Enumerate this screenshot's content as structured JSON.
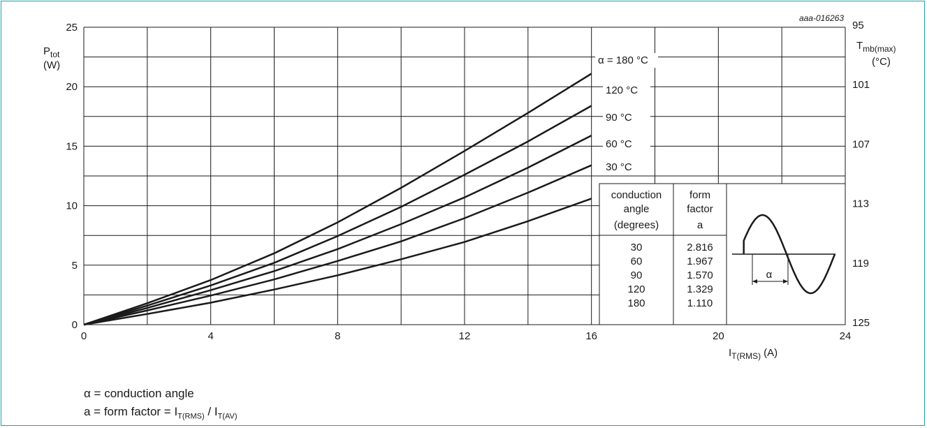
{
  "colors": {
    "border": "#1ea1a6",
    "ink": "#1a1a1a"
  },
  "reference": "aaa-016263",
  "chart_data": {
    "type": "line",
    "y_axis": {
      "label_main": "P",
      "label_sub": "tot",
      "unit": "(W)",
      "ticks": [
        0,
        5,
        10,
        15,
        20,
        25
      ],
      "ylim": [
        0,
        25
      ]
    },
    "y2_axis": {
      "label_main": "T",
      "label_sub": "mb(max)",
      "unit": "(°C)",
      "ticks": [
        "95",
        "101",
        "107",
        "113",
        "119",
        "125"
      ]
    },
    "x_axis": {
      "label_main": "I",
      "label_sub": "T(RMS)",
      "unit": "(A)",
      "ticks": [
        0,
        4,
        8,
        12,
        16,
        20,
        24
      ],
      "xlim": [
        0,
        24
      ]
    },
    "grid": true,
    "series": [
      {
        "name": "α = 180 °C",
        "x": [
          0,
          2,
          4,
          6,
          8,
          10,
          12,
          14,
          16
        ],
        "y": [
          0,
          1.8,
          3.75,
          6.0,
          8.6,
          11.5,
          14.6,
          17.8,
          21.1
        ]
      },
      {
        "name": "120 °C",
        "x": [
          0,
          2,
          4,
          6,
          8,
          10,
          12,
          14,
          16
        ],
        "y": [
          0,
          1.6,
          3.3,
          5.2,
          7.45,
          9.9,
          12.6,
          15.4,
          18.4
        ]
      },
      {
        "name": "90 °C",
        "x": [
          0,
          2,
          4,
          6,
          8,
          10,
          12,
          14,
          16
        ],
        "y": [
          0,
          1.4,
          2.9,
          4.5,
          6.35,
          8.45,
          10.7,
          13.2,
          15.9
        ]
      },
      {
        "name": "60 °C",
        "x": [
          0,
          2,
          4,
          6,
          8,
          10,
          12,
          14,
          16
        ],
        "y": [
          0,
          1.2,
          2.45,
          3.8,
          5.35,
          7.0,
          8.95,
          11.1,
          13.4
        ]
      },
      {
        "name": "30 °C",
        "x": [
          0,
          2,
          4,
          6,
          8,
          10,
          12,
          14,
          16
        ],
        "y": [
          0,
          0.9,
          1.85,
          2.95,
          4.15,
          5.5,
          6.95,
          8.7,
          10.6
        ]
      }
    ],
    "inset_table": {
      "headers": [
        [
          "conduction",
          "angle",
          "(degrees)"
        ],
        [
          "form",
          "factor",
          "a"
        ]
      ],
      "rows": [
        [
          "30",
          "2.816"
        ],
        [
          "60",
          "1.967"
        ],
        [
          "90",
          "1.570"
        ],
        [
          "120",
          "1.329"
        ],
        [
          "180",
          "1.110"
        ]
      ],
      "waveform_label": "α"
    }
  },
  "notes": {
    "line1": "α = conduction angle",
    "line2_prefix": "a = form factor = I",
    "line2_sub1": "T(RMS)",
    "line2_mid": " / I",
    "line2_sub2": "T(AV)"
  }
}
